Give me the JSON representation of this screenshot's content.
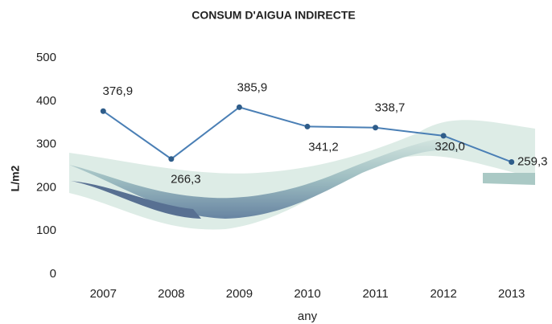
{
  "chart_data": {
    "type": "line",
    "title": "CONSUM D'AIGUA INDIRECTE",
    "categories": [
      "2007",
      "2008",
      "2009",
      "2010",
      "2011",
      "2012",
      "2013"
    ],
    "values": [
      376.9,
      266.3,
      385.9,
      341.2,
      338.7,
      320.0,
      259.3
    ],
    "value_labels": [
      "376,9",
      "266,3",
      "385,9",
      "341,2",
      "338,7",
      "320,0",
      "259,3"
    ],
    "color": "#4a7fb5",
    "ylim": [
      0,
      500
    ],
    "yticks": [
      0,
      100,
      200,
      300,
      400,
      500
    ],
    "grid": false,
    "y_label": "L/m2",
    "x_label": "any"
  }
}
